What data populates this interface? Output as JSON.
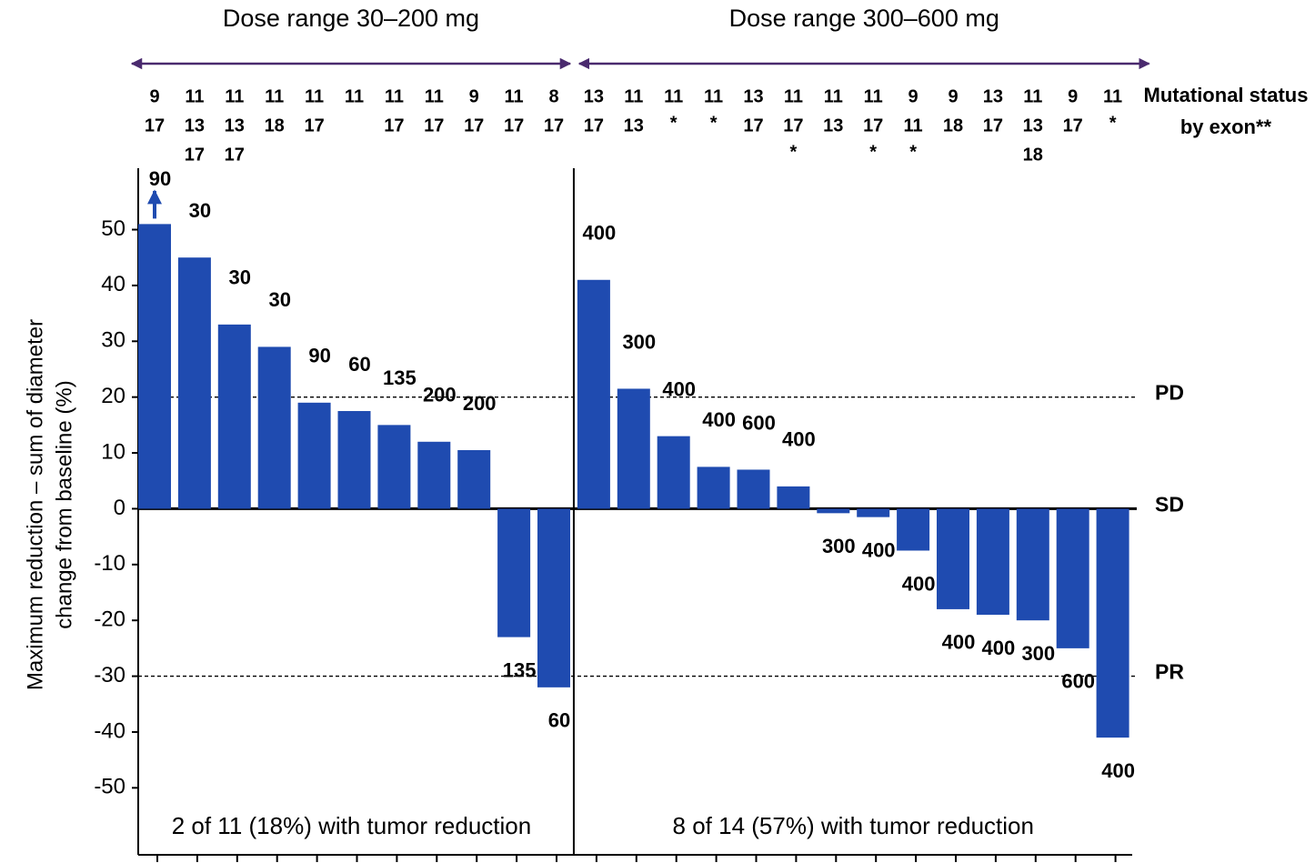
{
  "chart_data": {
    "type": "bar",
    "color": "#1f4bb0",
    "arrow_color": "#4a2a6e",
    "ylabel": [
      "Maximum reduction – sum of diameter",
      "change from baseline (%)"
    ],
    "mutation_header": [
      "Mutational status",
      "by exon**"
    ],
    "ylim": [
      -62,
      61
    ],
    "yticks": [
      50,
      40,
      30,
      20,
      10,
      0,
      -10,
      -20,
      -30,
      -40,
      -50
    ],
    "thresholds": [
      {
        "label": "PD",
        "value": 20,
        "dashed": true
      },
      {
        "label": "SD",
        "value": 0,
        "dashed": false
      },
      {
        "label": "PR",
        "value": -30,
        "dashed": true
      }
    ],
    "groups": [
      {
        "title": "Dose range 30–200 mg",
        "note": "2 of 11 (18%) with tumor reduction",
        "arrow_index": 0,
        "doses": [
          90,
          30,
          30,
          30,
          90,
          60,
          135,
          200,
          200,
          135,
          60
        ],
        "mutations": [
          [
            "9",
            "17"
          ],
          [
            "11",
            "13",
            "17"
          ],
          [
            "11",
            "13",
            "17"
          ],
          [
            "11",
            "18"
          ],
          [
            "11",
            "17"
          ],
          [
            "11"
          ],
          [
            "11",
            "17"
          ],
          [
            "11",
            "17"
          ],
          [
            "9",
            "17"
          ],
          [
            "11",
            "17"
          ],
          [
            "8",
            "17"
          ]
        ],
        "values": [
          51,
          45,
          33,
          29,
          19,
          17.5,
          15,
          12,
          10.5,
          -23,
          -32
        ]
      },
      {
        "title": "Dose range 300–600 mg",
        "note": "8 of 14 (57%) with tumor reduction",
        "doses": [
          400,
          300,
          400,
          400,
          600,
          400,
          300,
          400,
          400,
          400,
          400,
          300,
          600,
          400
        ],
        "mutations": [
          [
            "13",
            "17"
          ],
          [
            "11",
            "13"
          ],
          [
            "11",
            "*"
          ],
          [
            "11",
            "*"
          ],
          [
            "13",
            "17"
          ],
          [
            "11",
            "17",
            "*"
          ],
          [
            "11",
            "13"
          ],
          [
            "11",
            "17",
            "*"
          ],
          [
            "9",
            "11",
            "*"
          ],
          [
            "9",
            "18"
          ],
          [
            "13",
            "17"
          ],
          [
            "11",
            "13",
            "18"
          ],
          [
            "9",
            "17"
          ],
          [
            "11",
            "*"
          ]
        ],
        "values": [
          41,
          21.5,
          13,
          7.5,
          7,
          4,
          -0.8,
          -1.5,
          -7.5,
          -18,
          -19,
          -20,
          -25,
          -41
        ]
      }
    ]
  }
}
